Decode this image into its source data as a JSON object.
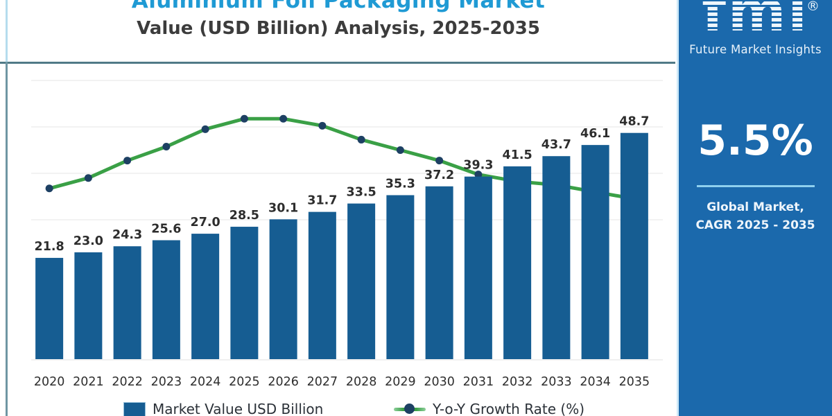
{
  "header": {
    "title_line1": "Aluminium Foil Packaging Market",
    "title_line2": "Value (USD Billion) Analysis, 2025-2035"
  },
  "sidebar": {
    "logo_text": "fmi",
    "logo_registered": "®",
    "logo_subtext": "Future Market Insights",
    "cagr_value": "5.5%",
    "cagr_label_line1": "Global Market,",
    "cagr_label_line2": "CAGR 2025 - 2035"
  },
  "legend": {
    "items": [
      {
        "label": "Market Value USD Billion",
        "swatch": "bar-square",
        "color": "#165d92"
      },
      {
        "label": "Y-o-Y Growth Rate (%)",
        "swatch": "line-dot",
        "color": "#3aa046",
        "dot_color": "#1d4063"
      }
    ]
  },
  "colors": {
    "bar": "#165d92",
    "growth_line": "#3aa046",
    "growth_marker": "#1d4063",
    "sidebar_bg": "#1b69ac",
    "title_accent": "#1f9ad4",
    "frame_teal": "#507a87",
    "gridline": "#ededed"
  },
  "chart_data": {
    "type": "combo-bar-line",
    "title": "Aluminium Foil Packaging Market Value (USD Billion) Analysis, 2025-2035",
    "categories": [
      "2020",
      "2021",
      "2022",
      "2023",
      "2024",
      "2025",
      "2026",
      "2027",
      "2028",
      "2029",
      "2030",
      "2031",
      "2032",
      "2033",
      "2034",
      "2035"
    ],
    "series": [
      {
        "name": "Market Value USD Billion",
        "type": "bar",
        "color": "#165d92",
        "data_labels_visible": true,
        "values": [
          21.8,
          23.0,
          24.3,
          25.6,
          27.0,
          28.5,
          30.1,
          31.7,
          33.5,
          35.3,
          37.2,
          39.3,
          41.5,
          43.7,
          46.1,
          48.7
        ]
      },
      {
        "name": "Y-o-Y Growth Rate (%)",
        "type": "line",
        "color": "#3aa046",
        "marker_color": "#1d4063",
        "values_estimated": true,
        "values": [
          4.9,
          5.2,
          5.7,
          6.1,
          6.6,
          6.9,
          6.9,
          6.7,
          6.3,
          6.0,
          5.7,
          5.3,
          5.1,
          5.0,
          4.8,
          4.6
        ]
      }
    ],
    "value_axis": {
      "min": 0,
      "max": 60,
      "gridlines": [
        30,
        40,
        50,
        60
      ],
      "labels_visible": false
    },
    "secondary_axis": {
      "min": 0,
      "max": 8,
      "labels_visible": false
    },
    "grid": "horizontal-faint",
    "legend_position": "bottom",
    "data_label_format": "one-decimal"
  }
}
